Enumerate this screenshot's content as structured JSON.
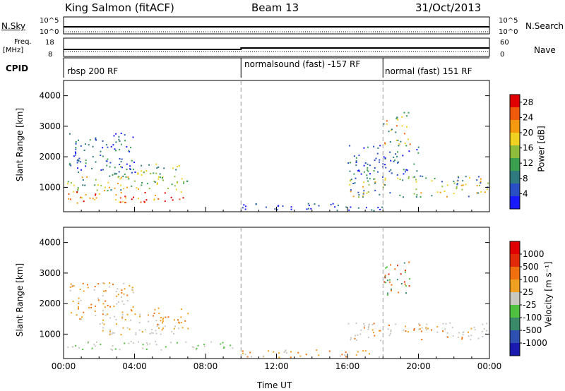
{
  "header": {
    "station": "King Salmon (fitACF)",
    "beam": "Beam 13",
    "date": "31/Oct/2013"
  },
  "left_labels": {
    "nsky": "N.Sky",
    "nsky_ticks": [
      "10^5",
      "10^0"
    ],
    "freq": "Freq.",
    "freq_unit": "[MHz]",
    "freq_ticks": [
      "18",
      "8"
    ],
    "cpid": "CPID"
  },
  "right_labels": {
    "nsearch": "N.Search",
    "nsearch_ticks": [
      "10^5",
      "10^0"
    ],
    "nave": "Nave",
    "nave_ticks": [
      "60",
      "0"
    ]
  },
  "cpid_segments": [
    {
      "label": "rbsp 200 RF",
      "start_hour": 0
    },
    {
      "label": "normalsound (fast) -157 RF",
      "start_hour": 10
    },
    {
      "label": "normal (fast) 151 RF",
      "start_hour": 18
    }
  ],
  "chart_data": [
    {
      "type": "heatmap",
      "name": "power-panel",
      "xlabel": "",
      "ylabel": "Slant Range [km]",
      "xlim": [
        0,
        24
      ],
      "ylim": [
        200,
        4500
      ],
      "yticks": [
        1000,
        2000,
        3000,
        4000
      ],
      "colorbar": {
        "label": "Power [dB]",
        "ticks": [
          4,
          8,
          12,
          16,
          20,
          24,
          28
        ],
        "range": [
          0,
          30
        ],
        "colors": [
          "#1a1aff",
          "#2a4fc4",
          "#2f7a7f",
          "#3aa050",
          "#8dbd3a",
          "#f0d020",
          "#f59a10",
          "#f05a0c",
          "#e00000"
        ]
      }
    },
    {
      "type": "heatmap",
      "name": "velocity-panel",
      "xlabel": "Time UT",
      "ylabel": "Slant Range [km]",
      "xlim": [
        0,
        24
      ],
      "ylim": [
        200,
        4500
      ],
      "yticks": [
        1000,
        2000,
        3000,
        4000
      ],
      "xticks": [
        "00:00",
        "04:00",
        "08:00",
        "12:00",
        "16:00",
        "20:00",
        "00:00"
      ],
      "colorbar": {
        "label": "Velocity [m s⁻¹]",
        "ticks": [
          "1000",
          "500",
          "100",
          "25",
          "-25",
          "-100",
          "-500",
          "-1000"
        ],
        "colors": [
          "#1a1ab0",
          "#2f50b0",
          "#3a8a6a",
          "#50c040",
          "#c8c8c0",
          "#f0a020",
          "#f07010",
          "#e02a08",
          "#e00000"
        ]
      }
    }
  ]
}
